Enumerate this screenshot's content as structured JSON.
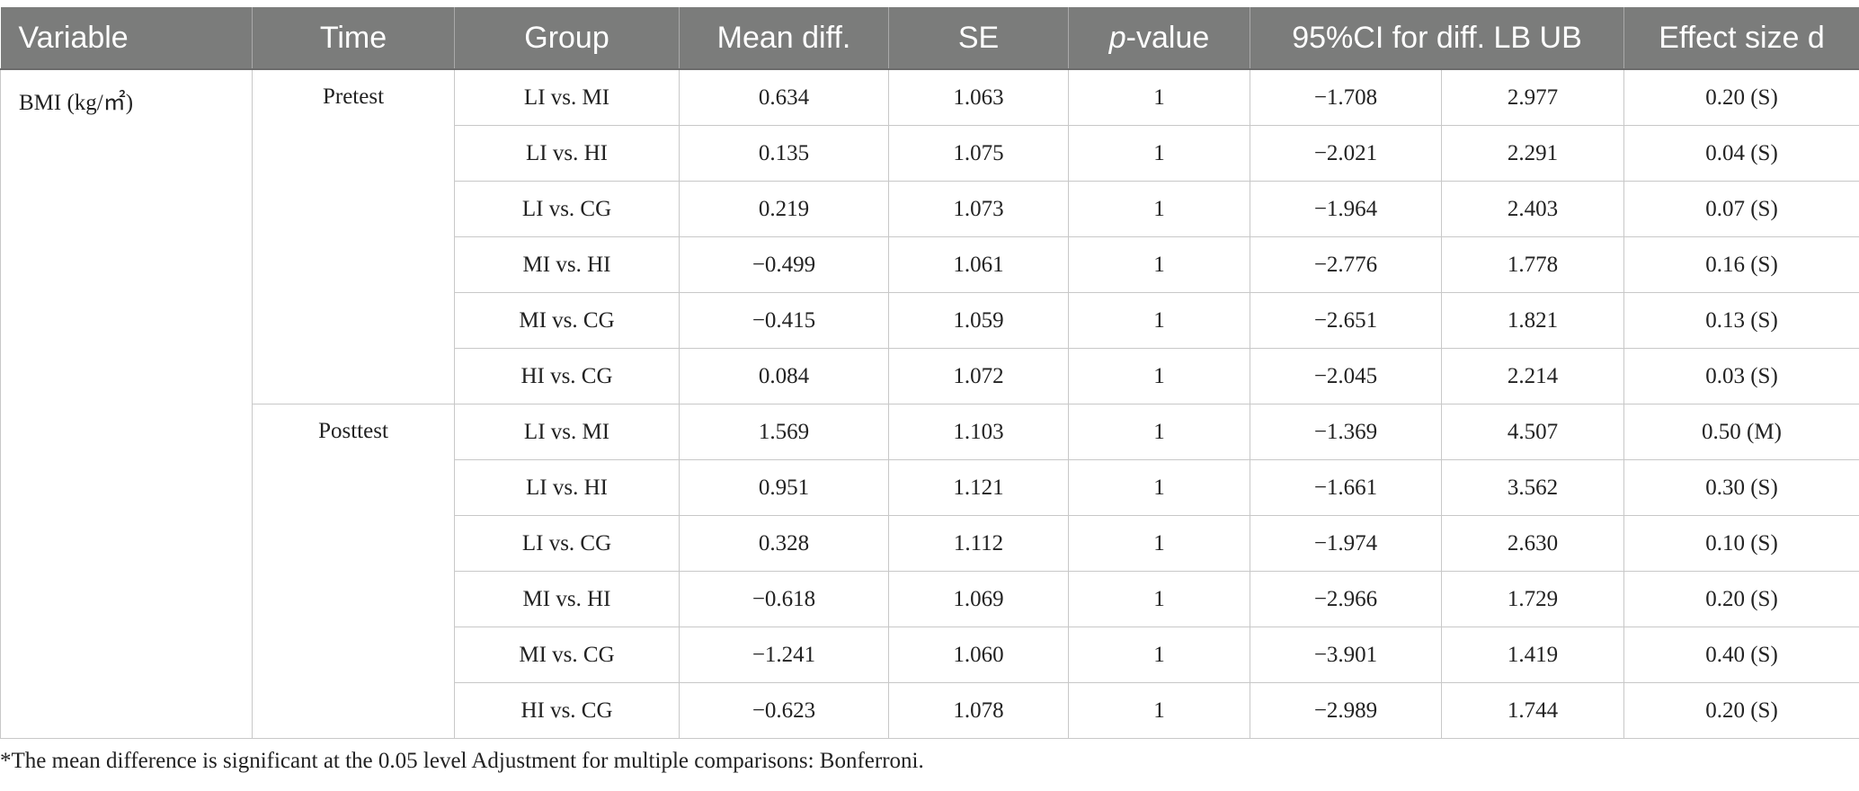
{
  "header": {
    "variable": "Variable",
    "time": "Time",
    "group": "Group",
    "mean_diff": "Mean diff.",
    "se": "SE",
    "p_italic": "p",
    "p_rest": "-value",
    "ci": "95%CI for diff. LB UB",
    "effect": "Effect size d"
  },
  "variable": "BMI (kg/㎡)",
  "sections": [
    {
      "time": "Pretest",
      "rows": [
        {
          "group": "LI vs. MI",
          "mean": "0.634",
          "se": "1.063",
          "p": "1",
          "lb": "−1.708",
          "ub": "2.977",
          "d": "0.20 (S)"
        },
        {
          "group": "LI vs. HI",
          "mean": "0.135",
          "se": "1.075",
          "p": "1",
          "lb": "−2.021",
          "ub": "2.291",
          "d": "0.04 (S)"
        },
        {
          "group": "LI vs. CG",
          "mean": "0.219",
          "se": "1.073",
          "p": "1",
          "lb": "−1.964",
          "ub": "2.403",
          "d": "0.07 (S)"
        },
        {
          "group": "MI vs. HI",
          "mean": "−0.499",
          "se": "1.061",
          "p": "1",
          "lb": "−2.776",
          "ub": "1.778",
          "d": "0.16 (S)"
        },
        {
          "group": "MI vs. CG",
          "mean": "−0.415",
          "se": "1.059",
          "p": "1",
          "lb": "−2.651",
          "ub": "1.821",
          "d": "0.13 (S)"
        },
        {
          "group": "HI vs. CG",
          "mean": "0.084",
          "se": "1.072",
          "p": "1",
          "lb": "−2.045",
          "ub": "2.214",
          "d": "0.03 (S)"
        }
      ]
    },
    {
      "time": "Posttest",
      "rows": [
        {
          "group": "LI vs. MI",
          "mean": "1.569",
          "se": "1.103",
          "p": "1",
          "lb": "−1.369",
          "ub": "4.507",
          "d": "0.50 (M)"
        },
        {
          "group": "LI vs. HI",
          "mean": "0.951",
          "se": "1.121",
          "p": "1",
          "lb": "−1.661",
          "ub": "3.562",
          "d": "0.30 (S)"
        },
        {
          "group": "LI vs. CG",
          "mean": "0.328",
          "se": "1.112",
          "p": "1",
          "lb": "−1.974",
          "ub": "2.630",
          "d": "0.10 (S)"
        },
        {
          "group": "MI vs. HI",
          "mean": "−0.618",
          "se": "1.069",
          "p": "1",
          "lb": "−2.966",
          "ub": "1.729",
          "d": "0.20 (S)"
        },
        {
          "group": "MI vs. CG",
          "mean": "−1.241",
          "se": "1.060",
          "p": "1",
          "lb": "−3.901",
          "ub": "1.419",
          "d": "0.40 (S)"
        },
        {
          "group": "HI vs. CG",
          "mean": "−0.623",
          "se": "1.078",
          "p": "1",
          "lb": "−2.989",
          "ub": "1.744",
          "d": "0.20 (S)"
        }
      ]
    }
  ],
  "footnote": "*The mean difference is significant at the 0.05 level Adjustment for multiple comparisons: Bonferroni.",
  "colors": {
    "header_bg": "#7b7c7b",
    "header_text": "#ffffff",
    "grid": "#c8c8c8"
  }
}
